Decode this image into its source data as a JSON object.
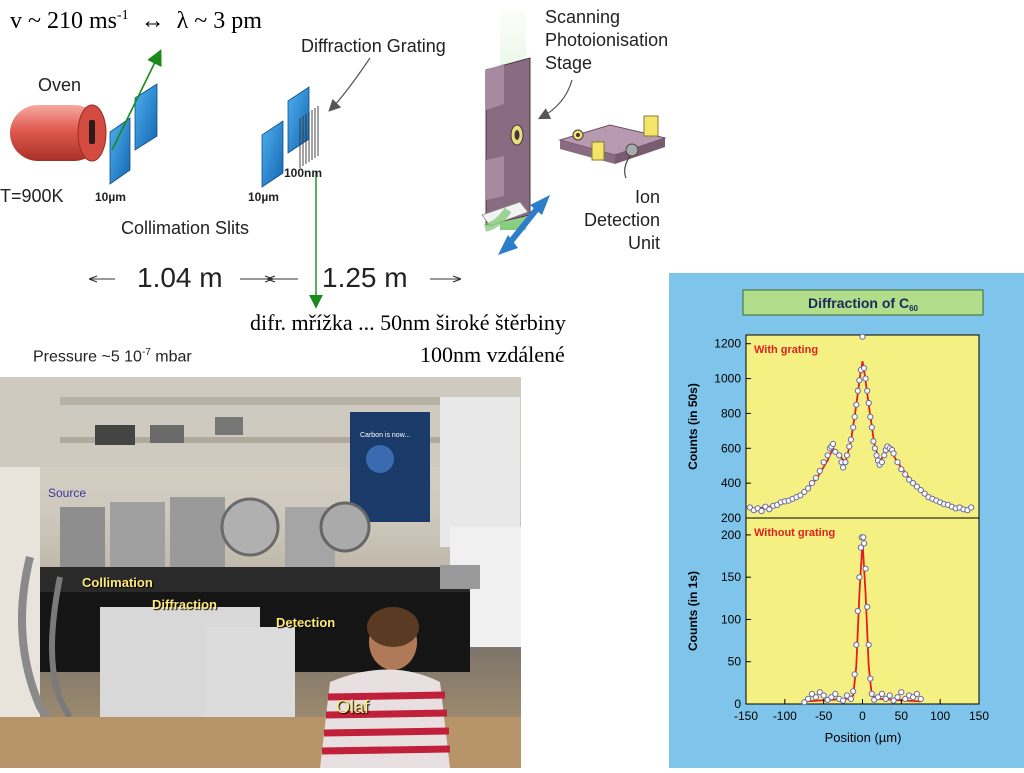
{
  "labels": {
    "velocity": "v ~ 210 ms",
    "velocity_exp": "-1",
    "arrow_symbol": "↔",
    "wavelength": "λ ~ 3 pm",
    "oven": "Oven",
    "temperature": "T=900K",
    "slit1_width": "10µm",
    "slit2_width": "10µm",
    "grating_period": "100nm",
    "collimation_slits": "Collimation Slits",
    "diffraction_grating": "Diffraction Grating",
    "stage_line1": "Scanning",
    "stage_line2": "Photoionisation",
    "stage_line3": "Stage",
    "ion_line1": "Ion",
    "ion_line2": "Detection",
    "ion_line3": "Unit",
    "distance1": "1.04 m",
    "distance2": "1.25 m",
    "pressure": "Pressure ~5 10",
    "pressure_exp": "-7",
    "pressure_unit": " mbar",
    "czech_line1": "difr. mřížka ... 50nm široké štěrbiny",
    "czech_line2": "100nm vzdálené"
  },
  "photo": {
    "source": "Source",
    "collimation": "Collimation",
    "diffraction": "Diffraction",
    "detection": "Detection",
    "person": "Olaf",
    "poster": "Carbon is now..."
  },
  "colors": {
    "panel_bg": "#7fc4ea",
    "plot_bg": "#f5f082",
    "title_bg": "#b2dd8a",
    "curve": "#e02020",
    "slit": "#1e88d8",
    "oven": "#e05050",
    "stage": "#8a6c82",
    "beam": "#1a8a1a"
  },
  "chart_data": {
    "type": "scatter",
    "title": "Diffraction of C",
    "title_sub": "60",
    "xlabel": "Position (µm)",
    "xlim": [
      -150,
      150
    ],
    "xticks": [
      -150,
      -100,
      -50,
      0,
      50,
      100,
      150
    ],
    "panels": [
      {
        "label": "With grating",
        "ylabel": "Counts (in 50s)",
        "ylim": [
          200,
          1250
        ],
        "yticks": [
          200,
          400,
          600,
          800,
          1000,
          1200
        ],
        "points": [
          [
            -145,
            260
          ],
          [
            -140,
            245
          ],
          [
            -135,
            255
          ],
          [
            -130,
            240
          ],
          [
            -125,
            265
          ],
          [
            -120,
            250
          ],
          [
            -115,
            270
          ],
          [
            -110,
            275
          ],
          [
            -105,
            290
          ],
          [
            -100,
            295
          ],
          [
            -95,
            300
          ],
          [
            -90,
            310
          ],
          [
            -85,
            320
          ],
          [
            -80,
            330
          ],
          [
            -75,
            350
          ],
          [
            -70,
            370
          ],
          [
            -65,
            400
          ],
          [
            -60,
            430
          ],
          [
            -55,
            470
          ],
          [
            -50,
            520
          ],
          [
            -45,
            560
          ],
          [
            -42,
            600
          ],
          [
            -40,
            610
          ],
          [
            -38,
            625
          ],
          [
            -35,
            580
          ],
          [
            -30,
            560
          ],
          [
            -27,
            520
          ],
          [
            -25,
            490
          ],
          [
            -22,
            520
          ],
          [
            -20,
            560
          ],
          [
            -17,
            610
          ],
          [
            -15,
            650
          ],
          [
            -12,
            720
          ],
          [
            -10,
            780
          ],
          [
            -8,
            850
          ],
          [
            -6,
            930
          ],
          [
            -4,
            990
          ],
          [
            -2,
            1050
          ],
          [
            0,
            1240
          ],
          [
            2,
            1060
          ],
          [
            4,
            1000
          ],
          [
            6,
            930
          ],
          [
            8,
            860
          ],
          [
            10,
            780
          ],
          [
            12,
            720
          ],
          [
            14,
            640
          ],
          [
            16,
            600
          ],
          [
            18,
            560
          ],
          [
            20,
            530
          ],
          [
            22,
            505
          ],
          [
            25,
            520
          ],
          [
            28,
            560
          ],
          [
            30,
            590
          ],
          [
            32,
            610
          ],
          [
            35,
            600
          ],
          [
            38,
            590
          ],
          [
            40,
            570
          ],
          [
            45,
            520
          ],
          [
            50,
            480
          ],
          [
            55,
            450
          ],
          [
            60,
            420
          ],
          [
            65,
            400
          ],
          [
            70,
            380
          ],
          [
            75,
            360
          ],
          [
            80,
            340
          ],
          [
            85,
            320
          ],
          [
            90,
            310
          ],
          [
            95,
            300
          ],
          [
            100,
            290
          ],
          [
            105,
            280
          ],
          [
            110,
            275
          ],
          [
            115,
            265
          ],
          [
            120,
            255
          ],
          [
            125,
            260
          ],
          [
            130,
            250
          ],
          [
            135,
            245
          ],
          [
            140,
            260
          ]
        ],
        "fit": [
          [
            -145,
            250
          ],
          [
            -120,
            265
          ],
          [
            -100,
            290
          ],
          [
            -80,
            330
          ],
          [
            -60,
            420
          ],
          [
            -45,
            530
          ],
          [
            -38,
            600
          ],
          [
            -30,
            560
          ],
          [
            -22,
            520
          ],
          [
            -15,
            640
          ],
          [
            -8,
            850
          ],
          [
            -3,
            1020
          ],
          [
            0,
            1100
          ],
          [
            3,
            1020
          ],
          [
            8,
            850
          ],
          [
            15,
            630
          ],
          [
            22,
            520
          ],
          [
            30,
            580
          ],
          [
            36,
            590
          ],
          [
            45,
            520
          ],
          [
            60,
            430
          ],
          [
            80,
            340
          ],
          [
            100,
            290
          ],
          [
            120,
            265
          ],
          [
            140,
            250
          ]
        ]
      },
      {
        "label": "Without  grating",
        "ylabel": "Counts (in 1s)",
        "ylim": [
          0,
          220
        ],
        "yticks": [
          0,
          50,
          100,
          150,
          200
        ],
        "points": [
          [
            -75,
            2
          ],
          [
            -70,
            6
          ],
          [
            -65,
            12
          ],
          [
            -60,
            8
          ],
          [
            -55,
            14
          ],
          [
            -50,
            10
          ],
          [
            -45,
            5
          ],
          [
            -40,
            8
          ],
          [
            -35,
            12
          ],
          [
            -30,
            6
          ],
          [
            -25,
            4
          ],
          [
            -20,
            10
          ],
          [
            -15,
            6
          ],
          [
            -12,
            15
          ],
          [
            -10,
            35
          ],
          [
            -8,
            70
          ],
          [
            -6,
            110
          ],
          [
            -4,
            150
          ],
          [
            -2,
            185
          ],
          [
            -1,
            197
          ],
          [
            1,
            197
          ],
          [
            2,
            190
          ],
          [
            4,
            160
          ],
          [
            6,
            115
          ],
          [
            8,
            70
          ],
          [
            10,
            30
          ],
          [
            12,
            12
          ],
          [
            15,
            5
          ],
          [
            20,
            8
          ],
          [
            25,
            12
          ],
          [
            30,
            6
          ],
          [
            35,
            10
          ],
          [
            40,
            4
          ],
          [
            45,
            8
          ],
          [
            50,
            14
          ],
          [
            55,
            6
          ],
          [
            60,
            10
          ],
          [
            65,
            8
          ],
          [
            70,
            12
          ],
          [
            75,
            6
          ]
        ],
        "fit": [
          [
            -75,
            3
          ],
          [
            -40,
            5
          ],
          [
            -20,
            6
          ],
          [
            -12,
            10
          ],
          [
            -8,
            45
          ],
          [
            -4,
            130
          ],
          [
            0,
            192
          ],
          [
            4,
            130
          ],
          [
            8,
            45
          ],
          [
            12,
            10
          ],
          [
            20,
            6
          ],
          [
            40,
            5
          ],
          [
            75,
            3
          ]
        ]
      }
    ]
  }
}
